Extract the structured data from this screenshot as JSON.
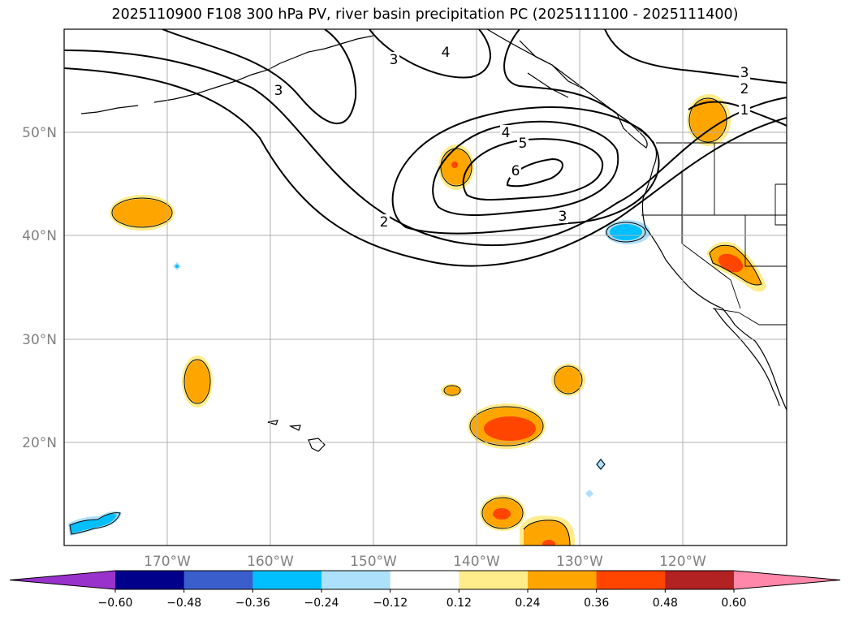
{
  "title": "2025110900 F108 300 hPa PV, river basin precipitation PC (2025111100 - 2025111400)",
  "longitude_ticks": [
    "170°W",
    "160°W",
    "150°W",
    "140°W",
    "130°W",
    "120°W"
  ],
  "latitude_ticks": [
    "20°N",
    "30°N",
    "40°N",
    "50°N"
  ],
  "pv_contour_labels": [
    "1",
    "2",
    "3",
    "3",
    "3",
    "4",
    "4",
    "5",
    "6",
    "2",
    "3"
  ],
  "colorbar": {
    "ticks": [
      "−0.60",
      "−0.48",
      "−0.36",
      "−0.24",
      "−0.12",
      "0.12",
      "0.24",
      "0.36",
      "0.48",
      "0.60"
    ],
    "colors": [
      "#9932CC",
      "#00008B",
      "#3A5FCD",
      "#00BFFF",
      "#ADE0FA",
      "#FFFFFF",
      "#FFEC8B",
      "#FFA500",
      "#FF4500",
      "#B22222",
      "#FF88AA"
    ]
  }
}
